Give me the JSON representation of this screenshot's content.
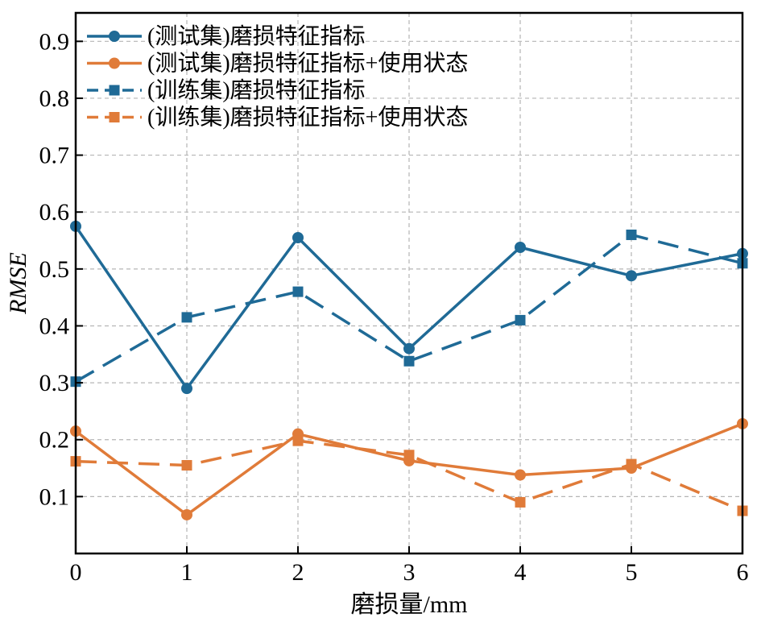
{
  "chart_data": {
    "type": "line",
    "xlabel": "磨损量/mm",
    "ylabel": "RMSE",
    "x": [
      0,
      1,
      2,
      3,
      4,
      5,
      6
    ],
    "xlim": [
      0,
      6
    ],
    "ylim": [
      0,
      0.95
    ],
    "xticks": [
      "0",
      "1",
      "2",
      "3",
      "4",
      "5",
      "6"
    ],
    "yticks": [
      "0.1",
      "0.2",
      "0.3",
      "0.4",
      "0.5",
      "0.6",
      "0.7",
      "0.8",
      "0.9"
    ],
    "grid": true,
    "legend_position": "top-left",
    "series": [
      {
        "name": "(测试集)磨损特征指标",
        "color": "#1f6a96",
        "line": "solid",
        "marker": "circle",
        "values": [
          0.575,
          0.29,
          0.555,
          0.36,
          0.538,
          0.488,
          0.527
        ]
      },
      {
        "name": "(测试集)磨损特征指标+使用状态",
        "color": "#e07b39",
        "line": "solid",
        "marker": "circle",
        "values": [
          0.215,
          0.068,
          0.21,
          0.163,
          0.138,
          0.15,
          0.228
        ]
      },
      {
        "name": "(训练集)磨损特征指标",
        "color": "#1f6a96",
        "line": "dashed",
        "marker": "square",
        "values": [
          0.302,
          0.415,
          0.46,
          0.338,
          0.41,
          0.56,
          0.51
        ]
      },
      {
        "name": "(训练集)磨损特征指标+使用状态",
        "color": "#e07b39",
        "line": "dashed",
        "marker": "square",
        "values": [
          0.162,
          0.155,
          0.198,
          0.173,
          0.09,
          0.157,
          0.075
        ]
      }
    ]
  }
}
